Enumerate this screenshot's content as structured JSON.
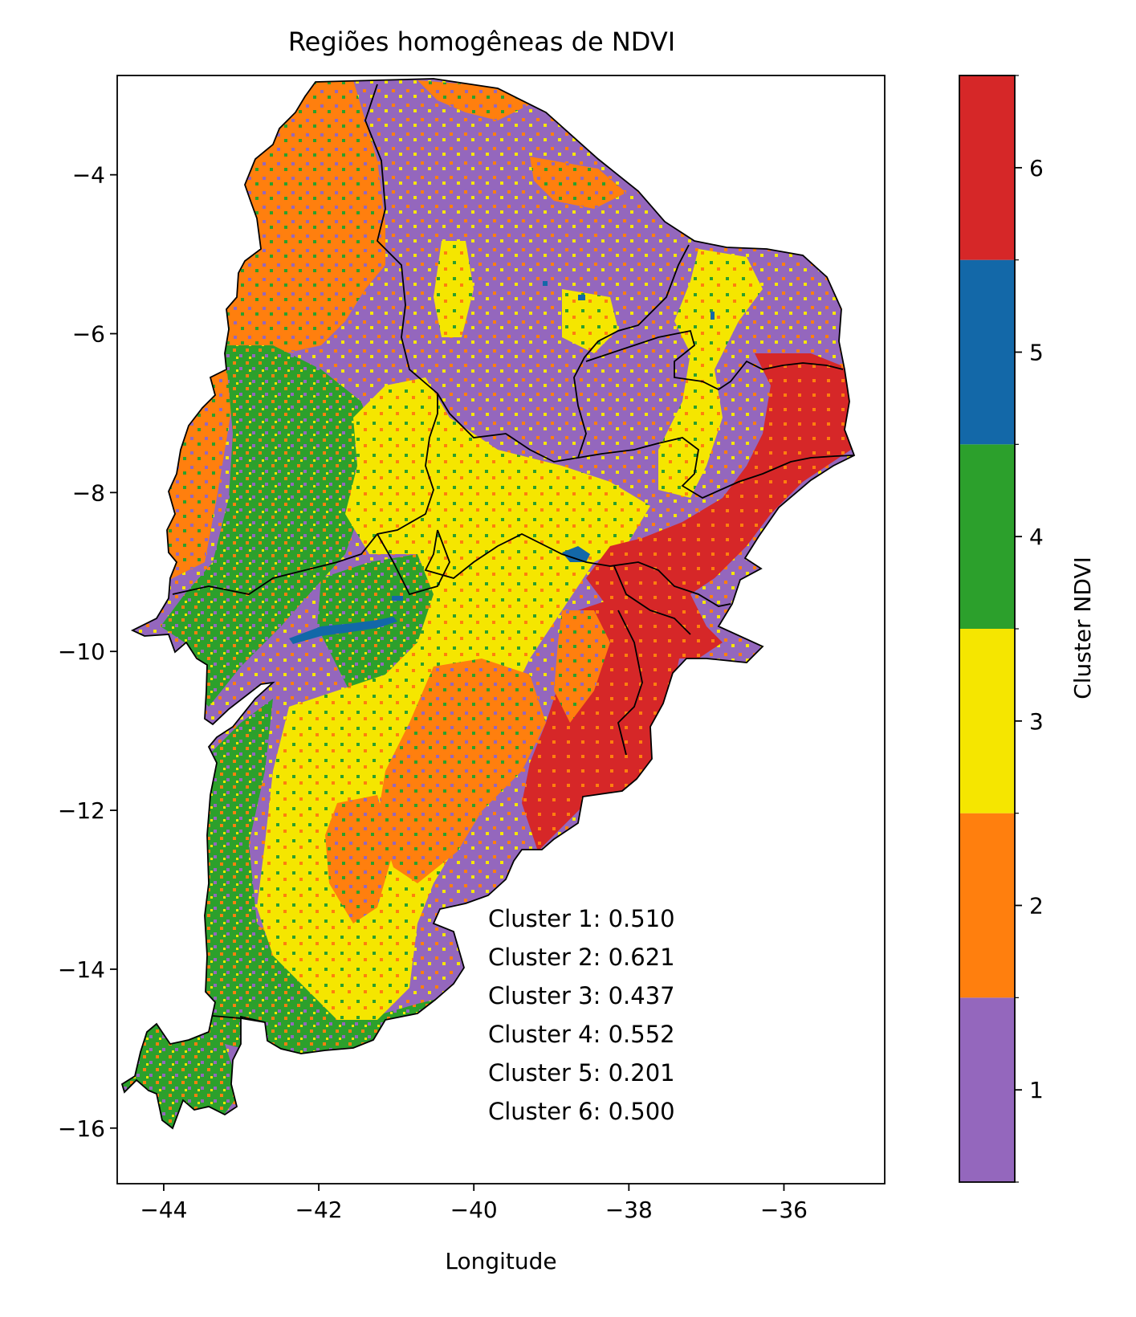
{
  "title": "Regiões homogêneas de NDVI",
  "x_label": "Longitude",
  "colorbar_label": "Cluster NDVI",
  "x_ticks": [
    "−44",
    "−42",
    "−40",
    "−38",
    "−36"
  ],
  "y_ticks": [
    "−4",
    "−6",
    "−8",
    "−10",
    "−12",
    "−14",
    "−16"
  ],
  "x_tick_values": [
    -44,
    -42,
    -40,
    -38,
    -36
  ],
  "y_tick_values": [
    -4,
    -6,
    -8,
    -10,
    -12,
    -14,
    -16
  ],
  "colorbar_ticks": [
    "1",
    "2",
    "3",
    "4",
    "5",
    "6"
  ],
  "cluster_colors": {
    "c1": "#9467bd",
    "c2": "#ff7f0e",
    "c3": "#f5e600",
    "c4": "#2ca02c",
    "c5": "#1368a8",
    "c6": "#d62728"
  },
  "annotations": [
    "Cluster 1: 0.510",
    "Cluster 2: 0.621",
    "Cluster 3: 0.437",
    "Cluster 4: 0.552",
    "Cluster 5: 0.201",
    "Cluster 6: 0.500"
  ],
  "chart_data": {
    "type": "heatmap",
    "title": "Regiões homogêneas de NDVI",
    "xlabel": "Longitude",
    "ylabel": "",
    "xlim": [
      -44.6,
      -34.7
    ],
    "ylim": [
      -16.7,
      -2.75
    ],
    "colorbar": {
      "label": "Cluster NDVI",
      "range": [
        0.5,
        6.5
      ],
      "categories": [
        1,
        2,
        3,
        4,
        5,
        6
      ]
    },
    "cluster_means": [
      {
        "cluster": 1,
        "value": 0.51
      },
      {
        "cluster": 2,
        "value": 0.621
      },
      {
        "cluster": 3,
        "value": 0.437
      },
      {
        "cluster": 4,
        "value": 0.552
      },
      {
        "cluster": 5,
        "value": 0.201
      },
      {
        "cluster": 6,
        "value": 0.5
      }
    ]
  }
}
